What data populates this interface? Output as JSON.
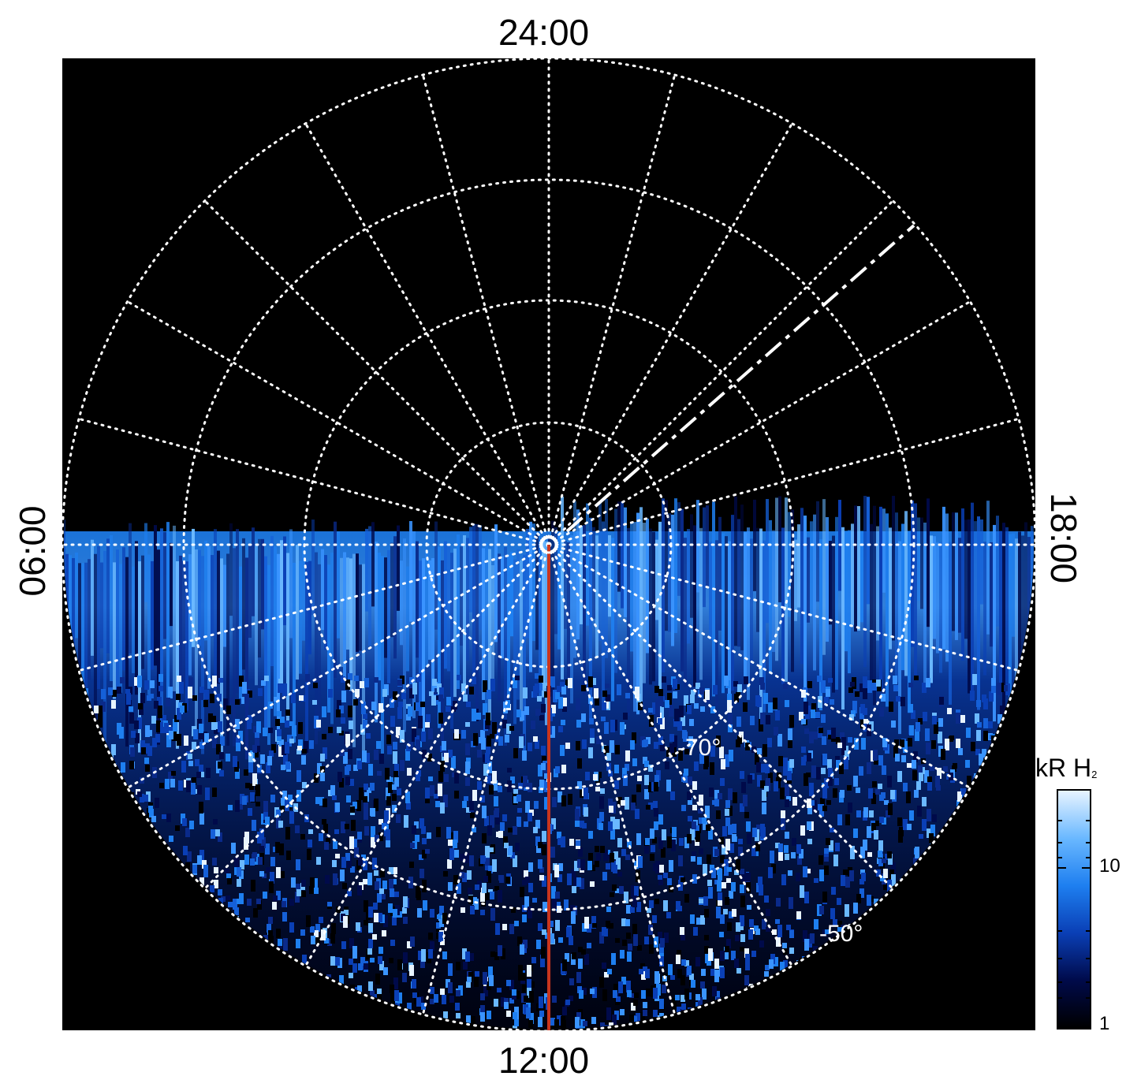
{
  "local_time_labels": {
    "top": "24:00",
    "bottom": "12:00",
    "left": "06:00",
    "right": "18:00"
  },
  "latitude_labels": {
    "inner": "-70°",
    "outer": "-50°"
  },
  "colorbar": {
    "unit": "kR H",
    "unit_subscript": "2",
    "tick_labels": [
      "10",
      "1"
    ],
    "scale": "log",
    "colors": [
      "#000000",
      "#000a4a",
      "#0a3fb5",
      "#1e7ff0",
      "#6ab8ff",
      "#e8f4ff"
    ]
  },
  "colors": {
    "background": "#000000",
    "grid": "#ffffff",
    "meridian_line": "#c8351e",
    "emission": "#1e7ff0"
  }
}
